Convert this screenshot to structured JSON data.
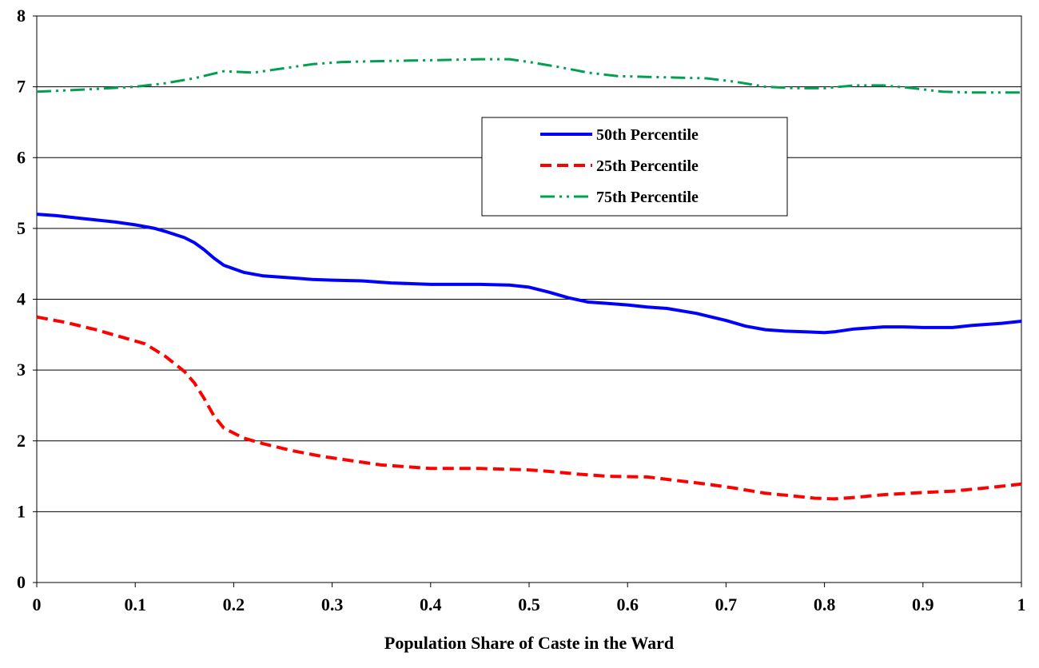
{
  "chart_data": {
    "type": "line",
    "xlabel": "Population Share of Caste in the Ward",
    "ylabel": "",
    "xlim": [
      0,
      1
    ],
    "ylim": [
      0,
      8
    ],
    "x_ticks": [
      "0",
      "0.1",
      "0.2",
      "0.3",
      "0.4",
      "0.5",
      "0.6",
      "0.7",
      "0.8",
      "0.9",
      "1"
    ],
    "y_ticks": [
      "0",
      "1",
      "2",
      "3",
      "4",
      "5",
      "6",
      "7",
      "8"
    ],
    "grid": "horizontal",
    "legend_position": "upper-center-right",
    "series": [
      {
        "name": "50th Percentile",
        "color": "#0000ff",
        "style": "solid",
        "points": [
          [
            0,
            5.2
          ],
          [
            0.02,
            5.18
          ],
          [
            0.04,
            5.15
          ],
          [
            0.06,
            5.12
          ],
          [
            0.08,
            5.09
          ],
          [
            0.1,
            5.05
          ],
          [
            0.12,
            5.0
          ],
          [
            0.13,
            4.96
          ],
          [
            0.15,
            4.87
          ],
          [
            0.16,
            4.8
          ],
          [
            0.17,
            4.7
          ],
          [
            0.18,
            4.58
          ],
          [
            0.19,
            4.48
          ],
          [
            0.21,
            4.38
          ],
          [
            0.23,
            4.33
          ],
          [
            0.25,
            4.31
          ],
          [
            0.28,
            4.28
          ],
          [
            0.3,
            4.27
          ],
          [
            0.33,
            4.26
          ],
          [
            0.36,
            4.23
          ],
          [
            0.4,
            4.21
          ],
          [
            0.42,
            4.21
          ],
          [
            0.45,
            4.21
          ],
          [
            0.48,
            4.2
          ],
          [
            0.5,
            4.17
          ],
          [
            0.52,
            4.1
          ],
          [
            0.54,
            4.02
          ],
          [
            0.56,
            3.96
          ],
          [
            0.58,
            3.94
          ],
          [
            0.6,
            3.92
          ],
          [
            0.62,
            3.89
          ],
          [
            0.64,
            3.87
          ],
          [
            0.67,
            3.8
          ],
          [
            0.7,
            3.7
          ],
          [
            0.72,
            3.62
          ],
          [
            0.74,
            3.57
          ],
          [
            0.76,
            3.55
          ],
          [
            0.78,
            3.54
          ],
          [
            0.8,
            3.53
          ],
          [
            0.81,
            3.54
          ],
          [
            0.83,
            3.58
          ],
          [
            0.86,
            3.61
          ],
          [
            0.88,
            3.61
          ],
          [
            0.9,
            3.6
          ],
          [
            0.93,
            3.6
          ],
          [
            0.95,
            3.63
          ],
          [
            0.98,
            3.66
          ],
          [
            1.0,
            3.69
          ]
        ]
      },
      {
        "name": "25th Percentile",
        "color": "#ff0000",
        "style": "dashed",
        "points": [
          [
            0,
            3.75
          ],
          [
            0.03,
            3.67
          ],
          [
            0.06,
            3.57
          ],
          [
            0.09,
            3.45
          ],
          [
            0.11,
            3.37
          ],
          [
            0.13,
            3.2
          ],
          [
            0.15,
            2.98
          ],
          [
            0.16,
            2.82
          ],
          [
            0.17,
            2.6
          ],
          [
            0.18,
            2.35
          ],
          [
            0.19,
            2.18
          ],
          [
            0.21,
            2.04
          ],
          [
            0.23,
            1.96
          ],
          [
            0.26,
            1.86
          ],
          [
            0.29,
            1.78
          ],
          [
            0.32,
            1.72
          ],
          [
            0.35,
            1.66
          ],
          [
            0.38,
            1.63
          ],
          [
            0.4,
            1.61
          ],
          [
            0.45,
            1.61
          ],
          [
            0.5,
            1.59
          ],
          [
            0.52,
            1.57
          ],
          [
            0.55,
            1.53
          ],
          [
            0.58,
            1.5
          ],
          [
            0.62,
            1.49
          ],
          [
            0.65,
            1.44
          ],
          [
            0.68,
            1.39
          ],
          [
            0.71,
            1.33
          ],
          [
            0.74,
            1.26
          ],
          [
            0.77,
            1.22
          ],
          [
            0.79,
            1.19
          ],
          [
            0.81,
            1.18
          ],
          [
            0.83,
            1.2
          ],
          [
            0.86,
            1.24
          ],
          [
            0.9,
            1.27
          ],
          [
            0.93,
            1.29
          ],
          [
            0.96,
            1.33
          ],
          [
            0.98,
            1.36
          ],
          [
            1.0,
            1.39
          ]
        ]
      },
      {
        "name": "75th Percentile",
        "color": "#00a050",
        "style": "dash-dot-dot",
        "points": [
          [
            0,
            6.93
          ],
          [
            0.03,
            6.95
          ],
          [
            0.06,
            6.97
          ],
          [
            0.1,
            7.0
          ],
          [
            0.13,
            7.05
          ],
          [
            0.16,
            7.12
          ],
          [
            0.19,
            7.22
          ],
          [
            0.22,
            7.2
          ],
          [
            0.25,
            7.26
          ],
          [
            0.28,
            7.32
          ],
          [
            0.31,
            7.35
          ],
          [
            0.34,
            7.36
          ],
          [
            0.38,
            7.37
          ],
          [
            0.42,
            7.38
          ],
          [
            0.45,
            7.39
          ],
          [
            0.48,
            7.39
          ],
          [
            0.5,
            7.35
          ],
          [
            0.53,
            7.28
          ],
          [
            0.56,
            7.2
          ],
          [
            0.59,
            7.15
          ],
          [
            0.62,
            7.14
          ],
          [
            0.65,
            7.13
          ],
          [
            0.68,
            7.12
          ],
          [
            0.71,
            7.07
          ],
          [
            0.74,
            7.0
          ],
          [
            0.77,
            6.98
          ],
          [
            0.8,
            6.98
          ],
          [
            0.83,
            7.02
          ],
          [
            0.86,
            7.02
          ],
          [
            0.89,
            6.98
          ],
          [
            0.92,
            6.93
          ],
          [
            0.95,
            6.92
          ],
          [
            0.98,
            6.92
          ],
          [
            1.0,
            6.92
          ]
        ]
      }
    ]
  }
}
